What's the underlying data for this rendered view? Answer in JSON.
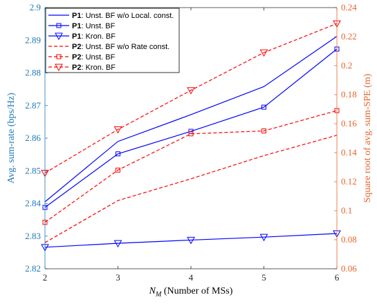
{
  "chart_data": {
    "type": "line",
    "xlabel_main": "N",
    "xlabel_sub": "M",
    "xlabel_rest": " (Number of MSs)",
    "ylabel_left": "Avg. sum-rate (bps/Hz)",
    "ylabel_right": "Square root of avg. sum-SPE (m)",
    "x": [
      2,
      3,
      4,
      5,
      6
    ],
    "x_ticks": [
      "2",
      "3",
      "4",
      "5",
      "6"
    ],
    "ylim_left": [
      2.82,
      2.9
    ],
    "yticks_left": [
      "2.82",
      "2.83",
      "2.84",
      "2.85",
      "2.86",
      "2.87",
      "2.88",
      "2.89",
      "2.9"
    ],
    "ylim_right": [
      0.06,
      0.24
    ],
    "yticks_right": [
      "0.06",
      "0.08",
      "0.1",
      "0.12",
      "0.14",
      "0.16",
      "0.18",
      "0.2",
      "0.22",
      "0.24"
    ],
    "left_color": "#0000ff",
    "right_color": "#ff0000",
    "left_axis_color": "#1f77b4",
    "right_axis_color": "#e8622a",
    "legend_position": "top-left",
    "series": [
      {
        "legend_bold": "P1",
        "legend_rest": ": Unst. BF w/o Local. const.",
        "axis": "left",
        "color": "#0000ff",
        "dash": "solid",
        "marker": "none",
        "values": [
          2.8405,
          2.859,
          2.8672,
          2.8758,
          2.8912
        ]
      },
      {
        "legend_bold": "P1",
        "legend_rest": ": Unst. BF",
        "axis": "left",
        "color": "#0000ff",
        "dash": "solid",
        "marker": "square",
        "values": [
          2.8388,
          2.8552,
          2.8621,
          2.8695,
          2.8873
        ]
      },
      {
        "legend_bold": "P1",
        "legend_rest": ": Kron. BF",
        "axis": "left",
        "color": "#0000ff",
        "dash": "solid",
        "marker": "triangle-down",
        "values": [
          2.8266,
          2.8278,
          2.8288,
          2.8297,
          2.8308
        ]
      },
      {
        "legend_bold": "P2",
        "legend_rest": ": Unst. BF w/o Rate const.",
        "axis": "right",
        "color": "#ff0000",
        "dash": "dashed",
        "marker": "none",
        "values": [
          0.078,
          0.107,
          0.122,
          0.138,
          0.152
        ]
      },
      {
        "legend_bold": "P2",
        "legend_rest": ": Unst. BF",
        "axis": "right",
        "color": "#ff0000",
        "dash": "dashed",
        "marker": "square",
        "values": [
          0.092,
          0.128,
          0.153,
          0.155,
          0.169
        ]
      },
      {
        "legend_bold": "P2",
        "legend_rest": ": Kron. BF",
        "axis": "right",
        "color": "#ff0000",
        "dash": "dashed",
        "marker": "triangle-down",
        "values": [
          0.126,
          0.156,
          0.183,
          0.209,
          0.229
        ]
      }
    ]
  }
}
